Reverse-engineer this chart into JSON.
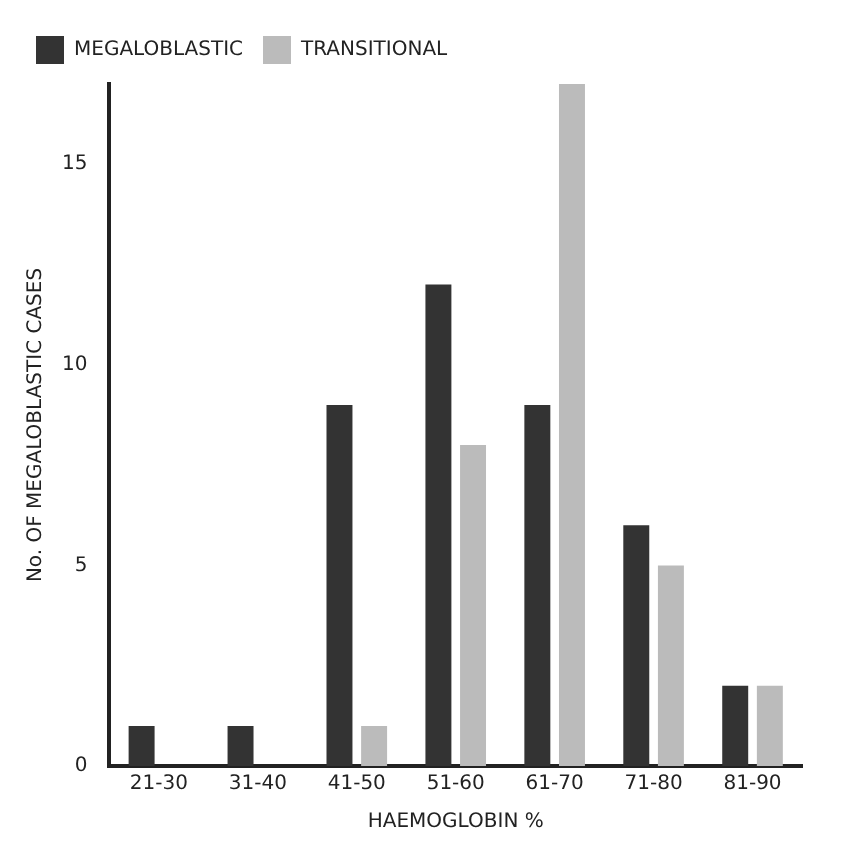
{
  "chart_data": {
    "type": "bar",
    "xlabel": "HAEMOGLOBIN %",
    "ylabel": "No. OF MEGALOBLASTIC CASES",
    "categories": [
      "21-30",
      "31-40",
      "41-50",
      "51-60",
      "61-70",
      "71-80",
      "81-90"
    ],
    "series": [
      {
        "name": "MEGALOBLASTIC",
        "color": "#333333",
        "values": [
          1,
          1,
          9,
          12,
          9,
          6,
          2
        ]
      },
      {
        "name": "TRANSITIONAL",
        "color": "#bbbbbb",
        "values": [
          0,
          0,
          1,
          8,
          17,
          5,
          2
        ]
      }
    ],
    "ylim": [
      0,
      17
    ],
    "yticks": [
      0,
      5,
      10,
      15
    ],
    "grid": false,
    "legend": "top left"
  }
}
